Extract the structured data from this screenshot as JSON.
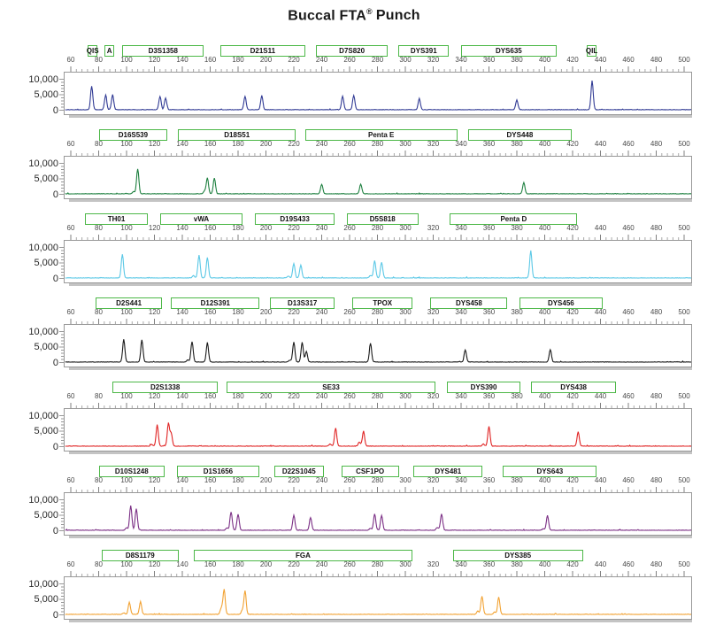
{
  "title": {
    "main": "Buccal FTA",
    "reg": "®",
    "suffix": "Punch"
  },
  "chart_data": {
    "type": "line",
    "description": "Capillary electrophoresis electropherogram, 7 dye-channel panels",
    "xaxis": {
      "start": 60,
      "end": 500,
      "major_step": 20,
      "minor_step": 4
    },
    "yaxis": {
      "min": 0,
      "max": 10000,
      "tick_labels": [
        {
          "v": 10000,
          "label": "10,000"
        },
        {
          "v": 5000,
          "label": "5,000"
        },
        {
          "v": 0,
          "label": "0"
        }
      ]
    },
    "marker_box_color": "#4db848",
    "panels": [
      {
        "color_name": "blue",
        "color": "#303a94",
        "markers": [
          {
            "label": "QIS",
            "start": 72,
            "end": 80
          },
          {
            "label": "A",
            "start": 84,
            "end": 92
          },
          {
            "label": "D3S1358",
            "start": 97,
            "end": 156
          },
          {
            "label": "D21S11",
            "start": 167,
            "end": 229
          },
          {
            "label": "D7S820",
            "start": 236,
            "end": 288
          },
          {
            "label": "DYS391",
            "start": 295,
            "end": 332
          },
          {
            "label": "DYS635",
            "start": 340,
            "end": 409
          },
          {
            "label": "QIL",
            "start": 430,
            "end": 438
          }
        ],
        "peaks": [
          [
            75,
            7600
          ],
          [
            85,
            4700
          ],
          [
            90,
            4900
          ],
          [
            124,
            4300
          ],
          [
            128,
            3800
          ],
          [
            185,
            4300
          ],
          [
            197,
            4400
          ],
          [
            255,
            4400
          ],
          [
            263,
            4600
          ],
          [
            310,
            3600
          ],
          [
            380,
            3100
          ],
          [
            434,
            9300
          ]
        ]
      },
      {
        "color_name": "green",
        "color": "#1e8040",
        "markers": [
          {
            "label": "D16S539",
            "start": 80,
            "end": 130
          },
          {
            "label": "D18S51",
            "start": 137,
            "end": 222
          },
          {
            "label": "Penta E",
            "start": 228,
            "end": 338
          },
          {
            "label": "DYS448",
            "start": 345,
            "end": 420
          }
        ],
        "peaks": [
          [
            105,
            700
          ],
          [
            108,
            8100
          ],
          [
            156,
            900
          ],
          [
            158,
            5100
          ],
          [
            163,
            5100
          ],
          [
            240,
            3100
          ],
          [
            268,
            3100
          ],
          [
            385,
            3600
          ]
        ]
      },
      {
        "color_name": "cyan",
        "color": "#5bc8e6",
        "markers": [
          {
            "label": "TH01",
            "start": 70,
            "end": 116
          },
          {
            "label": "vWA",
            "start": 124,
            "end": 184
          },
          {
            "label": "D19S433",
            "start": 192,
            "end": 250
          },
          {
            "label": "D5S818",
            "start": 258,
            "end": 310
          },
          {
            "label": "Penta D",
            "start": 332,
            "end": 424
          }
        ],
        "peaks": [
          [
            97,
            7600
          ],
          [
            148,
            700
          ],
          [
            152,
            7300
          ],
          [
            158,
            6600
          ],
          [
            216,
            600
          ],
          [
            220,
            4600
          ],
          [
            225,
            4100
          ],
          [
            275,
            800
          ],
          [
            278,
            5600
          ],
          [
            283,
            5100
          ],
          [
            390,
            8800
          ]
        ]
      },
      {
        "color_name": "black",
        "color": "#1a1a1a",
        "markers": [
          {
            "label": "D2S441",
            "start": 78,
            "end": 126
          },
          {
            "label": "D12S391",
            "start": 132,
            "end": 196
          },
          {
            "label": "D13S317",
            "start": 203,
            "end": 250
          },
          {
            "label": "TPOX",
            "start": 262,
            "end": 306
          },
          {
            "label": "DYS458",
            "start": 318,
            "end": 374
          },
          {
            "label": "DYS456",
            "start": 382,
            "end": 442
          }
        ],
        "peaks": [
          [
            98,
            7400
          ],
          [
            111,
            7100
          ],
          [
            144,
            600
          ],
          [
            147,
            6600
          ],
          [
            158,
            6300
          ],
          [
            217,
            600
          ],
          [
            220,
            6400
          ],
          [
            226,
            6400
          ],
          [
            229,
            3400
          ],
          [
            275,
            6100
          ],
          [
            343,
            3900
          ],
          [
            404,
            4000
          ]
        ]
      },
      {
        "color_name": "red",
        "color": "#e02424",
        "markers": [
          {
            "label": "D2S1338",
            "start": 90,
            "end": 166
          },
          {
            "label": "SE33",
            "start": 172,
            "end": 322
          },
          {
            "label": "DYS390",
            "start": 330,
            "end": 383
          },
          {
            "label": "DYS438",
            "start": 390,
            "end": 452
          }
        ],
        "peaks": [
          [
            118,
            600
          ],
          [
            122,
            6900
          ],
          [
            130,
            7400
          ],
          [
            132,
            4100
          ],
          [
            246,
            700
          ],
          [
            250,
            5900
          ],
          [
            267,
            1300
          ],
          [
            270,
            4900
          ],
          [
            356,
            700
          ],
          [
            360,
            6400
          ],
          [
            424,
            4600
          ]
        ]
      },
      {
        "color_name": "purple",
        "color": "#7b2f85",
        "markers": [
          {
            "label": "D10S1248",
            "start": 80,
            "end": 128
          },
          {
            "label": "D1S1656",
            "start": 136,
            "end": 196
          },
          {
            "label": "D22S1045",
            "start": 206,
            "end": 242
          },
          {
            "label": "CSF1PO",
            "start": 254,
            "end": 296
          },
          {
            "label": "DYS481",
            "start": 306,
            "end": 356
          },
          {
            "label": "DYS643",
            "start": 370,
            "end": 438
          }
        ],
        "peaks": [
          [
            100,
            800
          ],
          [
            103,
            7900
          ],
          [
            107,
            6900
          ],
          [
            172,
            700
          ],
          [
            175,
            5900
          ],
          [
            180,
            5100
          ],
          [
            220,
            4800
          ],
          [
            232,
            4100
          ],
          [
            275,
            600
          ],
          [
            278,
            5300
          ],
          [
            283,
            4800
          ],
          [
            323,
            900
          ],
          [
            326,
            5300
          ],
          [
            399,
            500
          ],
          [
            402,
            4800
          ]
        ]
      },
      {
        "color_name": "orange",
        "color": "#f2a232",
        "markers": [
          {
            "label": "D8S1179",
            "start": 82,
            "end": 138
          },
          {
            "label": "FGA",
            "start": 148,
            "end": 306
          },
          {
            "label": "DYS385",
            "start": 334,
            "end": 428
          }
        ],
        "peaks": [
          [
            98,
            500
          ],
          [
            102,
            3900
          ],
          [
            110,
            4100
          ],
          [
            168,
            2000
          ],
          [
            170,
            8100
          ],
          [
            183,
            1200
          ],
          [
            185,
            7600
          ],
          [
            352,
            1100
          ],
          [
            355,
            5900
          ],
          [
            364,
            700
          ],
          [
            367,
            5600
          ]
        ]
      }
    ]
  }
}
